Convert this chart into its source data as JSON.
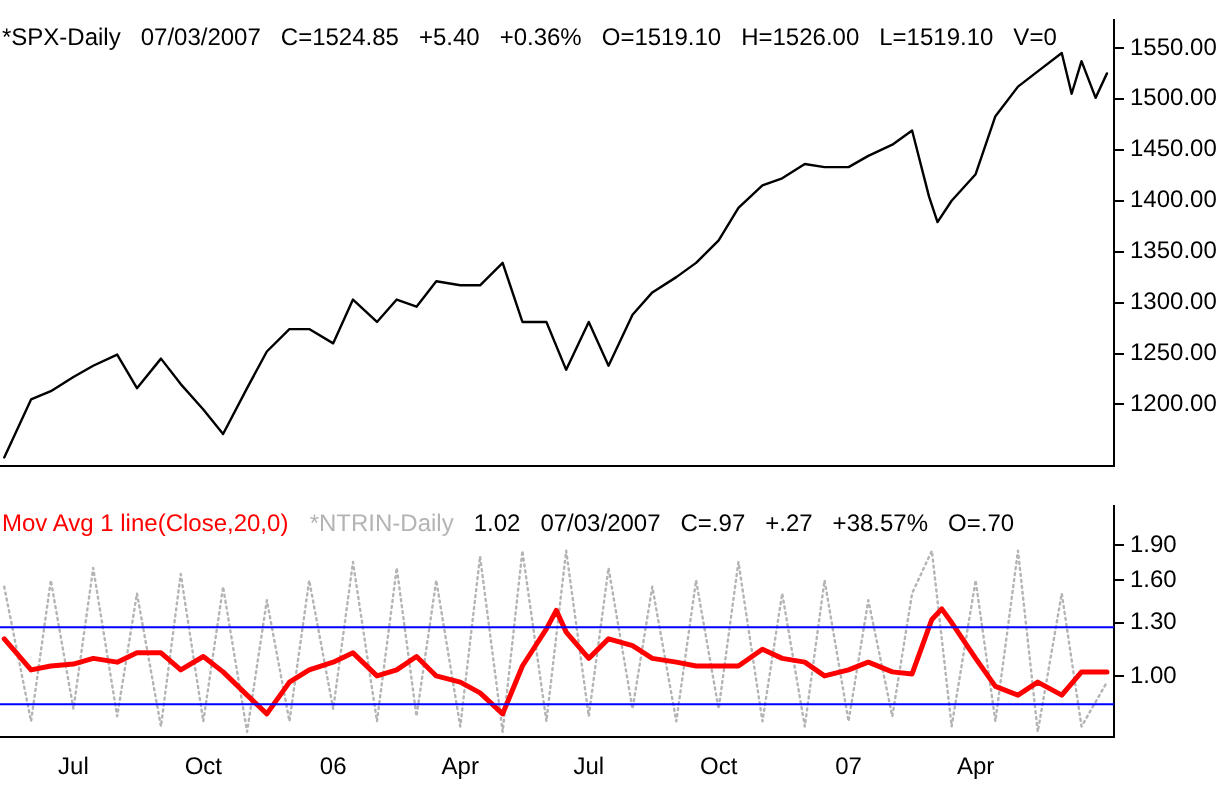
{
  "chart_data": [
    {
      "type": "line",
      "tick_labels": "y",
      "grid": false,
      "legend": "top left",
      "marker": "none",
      "line_style": "solid",
      "annotations": [
        "07/03/2007",
        "C=1524.85",
        "+5.40",
        "+0.36%",
        "O=1519.10",
        "H=1526.00",
        "L=1519.10",
        "V=0"
      ],
      "xlim": [
        "2005-05-10",
        "2007-07-08"
      ],
      "ylim": [
        1140,
        1577
      ],
      "yticks": [
        {
          "value": 1200,
          "label": "1200.00"
        },
        {
          "value": 1250,
          "label": "1250.00"
        },
        {
          "value": 1300,
          "label": "1300.00"
        },
        {
          "value": 1350,
          "label": "1350.00"
        },
        {
          "value": 1400,
          "label": "1400.00"
        },
        {
          "value": 1450,
          "label": "1450.00"
        },
        {
          "value": 1500,
          "label": "1500.00"
        },
        {
          "value": 1550,
          "label": "1550.00"
        }
      ],
      "series": [
        {
          "name": "*SPX-Daily",
          "color": "#000000",
          "x": [
            "2005-05-13",
            "2005-06-01",
            "2005-06-15",
            "2005-07-01",
            "2005-07-15",
            "2005-08-01",
            "2005-08-15",
            "2005-09-01",
            "2005-09-15",
            "2005-10-01",
            "2005-10-15",
            "2005-11-01",
            "2005-11-15",
            "2005-12-01",
            "2005-12-15",
            "2006-01-01",
            "2006-01-15",
            "2006-02-01",
            "2006-02-15",
            "2006-03-01",
            "2006-03-15",
            "2006-04-01",
            "2006-04-15",
            "2006-05-01",
            "2006-05-15",
            "2006-06-01",
            "2006-06-15",
            "2006-07-01",
            "2006-07-15",
            "2006-08-01",
            "2006-08-15",
            "2006-09-01",
            "2006-09-15",
            "2006-10-01",
            "2006-10-15",
            "2006-11-01",
            "2006-11-15",
            "2006-12-01",
            "2006-12-15",
            "2007-01-01",
            "2007-01-15",
            "2007-02-01",
            "2007-02-15",
            "2007-02-27",
            "2007-03-05",
            "2007-03-15",
            "2007-04-01",
            "2007-04-15",
            "2007-05-01",
            "2007-05-15",
            "2007-06-01",
            "2007-06-08",
            "2007-06-15",
            "2007-06-25",
            "2007-07-03"
          ],
          "values": [
            1148,
            1205,
            1213,
            1227,
            1238,
            1249,
            1216,
            1245,
            1220,
            1195,
            1171,
            1216,
            1252,
            1274,
            1274,
            1260,
            1303,
            1281,
            1303,
            1296,
            1321,
            1317,
            1317,
            1339,
            1281,
            1281,
            1234,
            1281,
            1238,
            1288,
            1310,
            1325,
            1339,
            1361,
            1393,
            1415,
            1422,
            1436,
            1433,
            1433,
            1444,
            1455,
            1469,
            1404,
            1379,
            1400,
            1426,
            1483,
            1512,
            1527,
            1545,
            1505,
            1537,
            1501,
            1525
          ]
        }
      ]
    },
    {
      "type": "line",
      "log": "y",
      "grid": false,
      "legend": "top left",
      "marker": "none",
      "annotations": [
        "1.02",
        "07/03/2007",
        "C=.97",
        "+.27",
        "+38.57%",
        "O=.70"
      ],
      "xlim": [
        "2005-05-10",
        "2007-07-08"
      ],
      "xticks": [
        {
          "value": "2005-07-01",
          "label": "Jul"
        },
        {
          "value": "2005-10-01",
          "label": "Oct"
        },
        {
          "value": "2006-01-01",
          "label": "06"
        },
        {
          "value": "2006-04-01",
          "label": "Apr"
        },
        {
          "value": "2006-07-01",
          "label": "Jul"
        },
        {
          "value": "2006-10-01",
          "label": "Oct"
        },
        {
          "value": "2007-01-01",
          "label": "07"
        },
        {
          "value": "2007-04-01",
          "label": "Apr"
        }
      ],
      "ylim": [
        0.74,
        2.3
      ],
      "yticks": [
        {
          "value": 1,
          "label": "1.00"
        },
        {
          "value": 1.3,
          "label": "1.30"
        },
        {
          "value": 1.6,
          "label": "1.60"
        },
        {
          "value": 1.9,
          "label": "1.90"
        }
      ],
      "ref_lines": [
        {
          "axis": "y",
          "value": 1.27,
          "color": "#0000ff"
        },
        {
          "axis": "y",
          "value": 0.87,
          "color": "#0000ff"
        }
      ],
      "series": [
        {
          "name": "Mov Avg 1 line(Close,20,0)",
          "color": "#ff0000",
          "line_style": "solid",
          "x": [
            "2005-05-13",
            "2005-06-01",
            "2005-06-15",
            "2005-07-01",
            "2005-07-15",
            "2005-08-01",
            "2005-08-15",
            "2005-09-01",
            "2005-09-15",
            "2005-10-01",
            "2005-10-15",
            "2005-11-01",
            "2005-11-15",
            "2005-12-01",
            "2005-12-15",
            "2006-01-01",
            "2006-01-15",
            "2006-02-01",
            "2006-02-15",
            "2006-03-01",
            "2006-03-15",
            "2006-04-01",
            "2006-04-15",
            "2006-05-01",
            "2006-05-15",
            "2006-06-01",
            "2006-06-08",
            "2006-06-15",
            "2006-07-01",
            "2006-07-15",
            "2006-08-01",
            "2006-08-15",
            "2006-09-01",
            "2006-09-15",
            "2006-10-01",
            "2006-10-15",
            "2006-11-01",
            "2006-11-15",
            "2006-12-01",
            "2006-12-15",
            "2007-01-01",
            "2007-01-15",
            "2007-02-01",
            "2007-02-15",
            "2007-03-01",
            "2007-03-08",
            "2007-03-15",
            "2007-04-01",
            "2007-04-15",
            "2007-05-01",
            "2007-05-15",
            "2007-06-01",
            "2007-06-15",
            "2007-07-03"
          ],
          "values": [
            1.2,
            1.03,
            1.05,
            1.06,
            1.09,
            1.07,
            1.12,
            1.12,
            1.03,
            1.1,
            1.02,
            0.91,
            0.83,
            0.97,
            1.03,
            1.07,
            1.12,
            1.0,
            1.03,
            1.1,
            1.0,
            0.97,
            0.92,
            0.83,
            1.05,
            1.26,
            1.38,
            1.24,
            1.09,
            1.2,
            1.16,
            1.09,
            1.07,
            1.05,
            1.05,
            1.05,
            1.14,
            1.09,
            1.07,
            1.0,
            1.03,
            1.07,
            1.02,
            1.01,
            1.32,
            1.39,
            1.3,
            1.09,
            0.95,
            0.91,
            0.97,
            0.91,
            1.02,
            1.02
          ]
        },
        {
          "name": "*NTRIN-Daily",
          "color": "#b4b4b4",
          "line_style": "dotted",
          "x": [
            "2005-05-13",
            "2005-06-01",
            "2005-06-15",
            "2005-07-01",
            "2005-07-15",
            "2005-08-01",
            "2005-08-15",
            "2005-09-01",
            "2005-09-15",
            "2005-10-01",
            "2005-10-15",
            "2005-11-01",
            "2005-11-15",
            "2005-12-01",
            "2005-12-15",
            "2006-01-01",
            "2006-01-15",
            "2006-02-01",
            "2006-02-15",
            "2006-03-01",
            "2006-03-15",
            "2006-04-01",
            "2006-04-15",
            "2006-05-01",
            "2006-05-15",
            "2006-06-01",
            "2006-06-15",
            "2006-07-01",
            "2006-07-15",
            "2006-08-01",
            "2006-08-15",
            "2006-09-01",
            "2006-09-15",
            "2006-10-01",
            "2006-10-15",
            "2006-11-01",
            "2006-11-15",
            "2006-12-01",
            "2006-12-15",
            "2007-01-01",
            "2007-01-15",
            "2007-02-01",
            "2007-02-15",
            "2007-03-01",
            "2007-03-15",
            "2007-04-01",
            "2007-04-15",
            "2007-05-01",
            "2007-05-15",
            "2007-06-01",
            "2007-06-15",
            "2007-07-03"
          ],
          "values": [
            1.55,
            0.8,
            1.6,
            0.85,
            1.7,
            0.82,
            1.5,
            0.78,
            1.65,
            0.8,
            1.55,
            0.76,
            1.45,
            0.8,
            1.6,
            0.85,
            1.75,
            0.8,
            1.7,
            0.82,
            1.6,
            0.78,
            1.8,
            0.76,
            1.85,
            0.8,
            1.85,
            0.82,
            1.7,
            0.85,
            1.55,
            0.8,
            1.6,
            0.85,
            1.75,
            0.8,
            1.5,
            0.78,
            1.6,
            0.8,
            1.45,
            0.82,
            1.5,
            1.85,
            0.78,
            1.6,
            0.8,
            1.85,
            0.76,
            1.5,
            0.78,
            0.97
          ]
        }
      ]
    }
  ]
}
